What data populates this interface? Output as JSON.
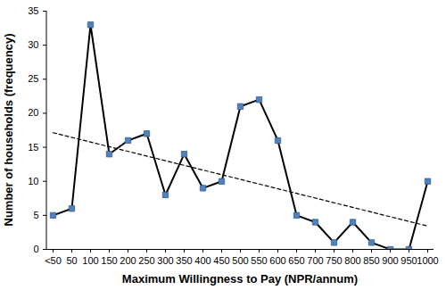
{
  "chart_data": {
    "type": "line",
    "x_label": "Maximum Willingness to Pay (NPR/annum)",
    "y_label": "Number of households (frequency)",
    "categories": [
      "<50",
      "50",
      "100",
      "150",
      "200",
      "250",
      "300",
      "350",
      "400",
      "450",
      "500",
      "550",
      "600",
      "650",
      "700",
      "750",
      "800",
      "850",
      "900",
      "950",
      "1000"
    ],
    "values": [
      5,
      6,
      33,
      14,
      16,
      17,
      8,
      14,
      9,
      10,
      21,
      22,
      16,
      5,
      4,
      1,
      4,
      1,
      0,
      0,
      10
    ],
    "color": "#4f81bd",
    "marker": "square",
    "line_style": "solid",
    "ylim": [
      0,
      35
    ],
    "yticks": [
      0,
      5,
      10,
      15,
      20,
      25,
      30,
      35
    ],
    "grid": false
  }
}
